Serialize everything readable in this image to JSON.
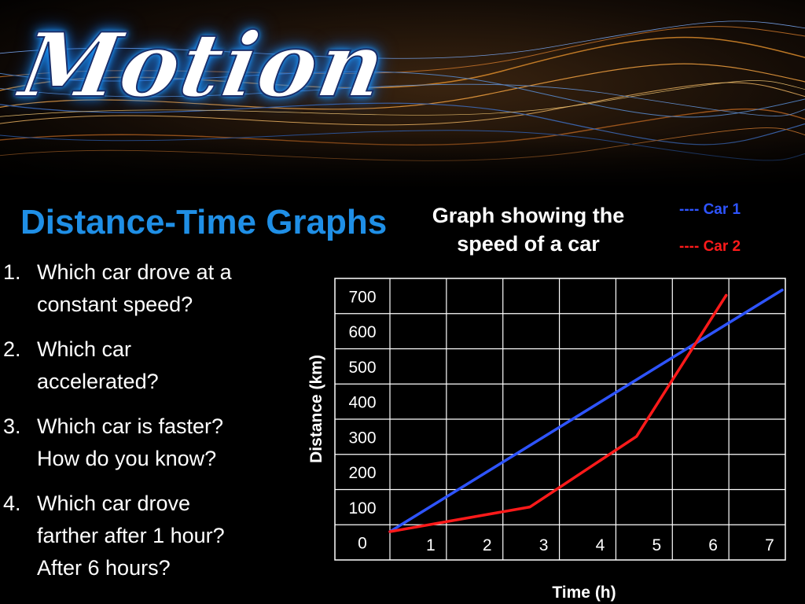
{
  "logo_text": "Motion",
  "heading": "Distance-Time Graphs",
  "graph_title_lines": [
    "Graph showing the",
    "speed of a car"
  ],
  "legend": [
    {
      "label": "---- Car 1",
      "color": "#2e54ff"
    },
    {
      "label": "---- Car 2",
      "color": "#ff1a1a"
    }
  ],
  "questions": [
    {
      "num": "1.",
      "lines": [
        "Which car drove at a",
        "constant speed?"
      ]
    },
    {
      "num": "2.",
      "lines": [
        "Which car",
        "accelerated?"
      ]
    },
    {
      "num": "3.",
      "lines": [
        "Which car is faster?",
        "How do you know?"
      ]
    },
    {
      "num": "4.",
      "lines": [
        "Which car drove",
        "farther after 1 hour?",
        "After 6 hours?"
      ]
    }
  ],
  "colors": {
    "heading": "#1f8fe6",
    "logo_glow": "#1e9bff",
    "car1": "#2e54ff",
    "car2": "#ff1a1a"
  },
  "chart_data": {
    "type": "line",
    "title": "Graph showing the speed of a car",
    "xlabel": "Time (h)",
    "ylabel": "Distance (km)",
    "xlim": [
      0,
      7
    ],
    "ylim": [
      0,
      700
    ],
    "grid": true,
    "legend_position": "top-right",
    "x_ticks": [
      1,
      2,
      3,
      4,
      5,
      6,
      7
    ],
    "y_ticks": [
      0,
      100,
      200,
      300,
      400,
      500,
      600,
      700
    ],
    "series": [
      {
        "name": "Car 1",
        "color": "#2e54ff",
        "points": [
          [
            0,
            0
          ],
          [
            7,
            685
          ]
        ]
      },
      {
        "name": "Car 2",
        "color": "#ff1a1a",
        "points": [
          [
            0,
            0
          ],
          [
            2.5,
            70
          ],
          [
            4.4,
            270
          ],
          [
            6,
            670
          ]
        ]
      }
    ]
  }
}
